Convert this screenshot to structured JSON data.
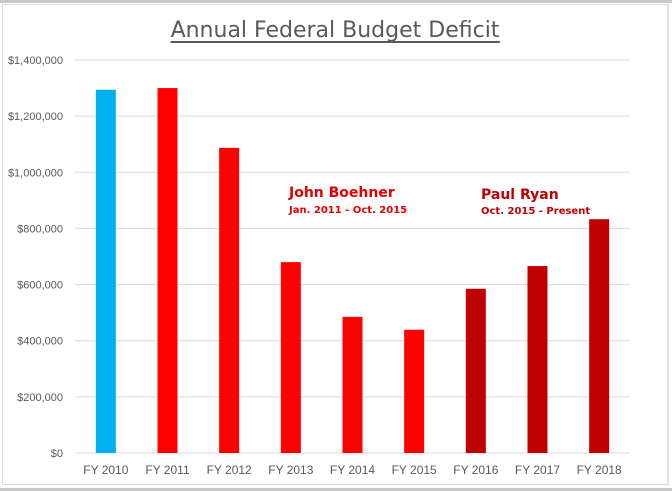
{
  "chart_data": {
    "type": "bar",
    "title": "Annual Federal Budget Deficit",
    "xlabel": "",
    "ylabel": "",
    "ylim": [
      0,
      1400000
    ],
    "yticks": [
      0,
      200000,
      400000,
      600000,
      800000,
      1000000,
      1200000,
      1400000
    ],
    "ytick_labels": [
      "$0",
      "$200,000",
      "$400,000",
      "$600,000",
      "$800,000",
      "$1,000,000",
      "$1,200,000",
      "$1,400,000"
    ],
    "grid": true,
    "categories": [
      "FY 2010",
      "FY 2011",
      "FY 2012",
      "FY 2013",
      "FY 2014",
      "FY 2015",
      "FY 2016",
      "FY 2017",
      "FY 2018"
    ],
    "values": [
      1294000,
      1300000,
      1087000,
      680000,
      485000,
      439000,
      585000,
      666000,
      833000
    ],
    "bar_colors": [
      "#00b0f0",
      "#ff0000",
      "#ff0000",
      "#ff0000",
      "#ff0000",
      "#ff0000",
      "#c00000",
      "#c00000",
      "#c00000"
    ],
    "annotations": [
      {
        "name": "John Boehner",
        "period": "Jan. 2011 - Oct. 2015",
        "color": "#e00000"
      },
      {
        "name": "Paul Ryan",
        "period": "Oct. 2015 - Present",
        "color": "#c00000"
      }
    ]
  }
}
